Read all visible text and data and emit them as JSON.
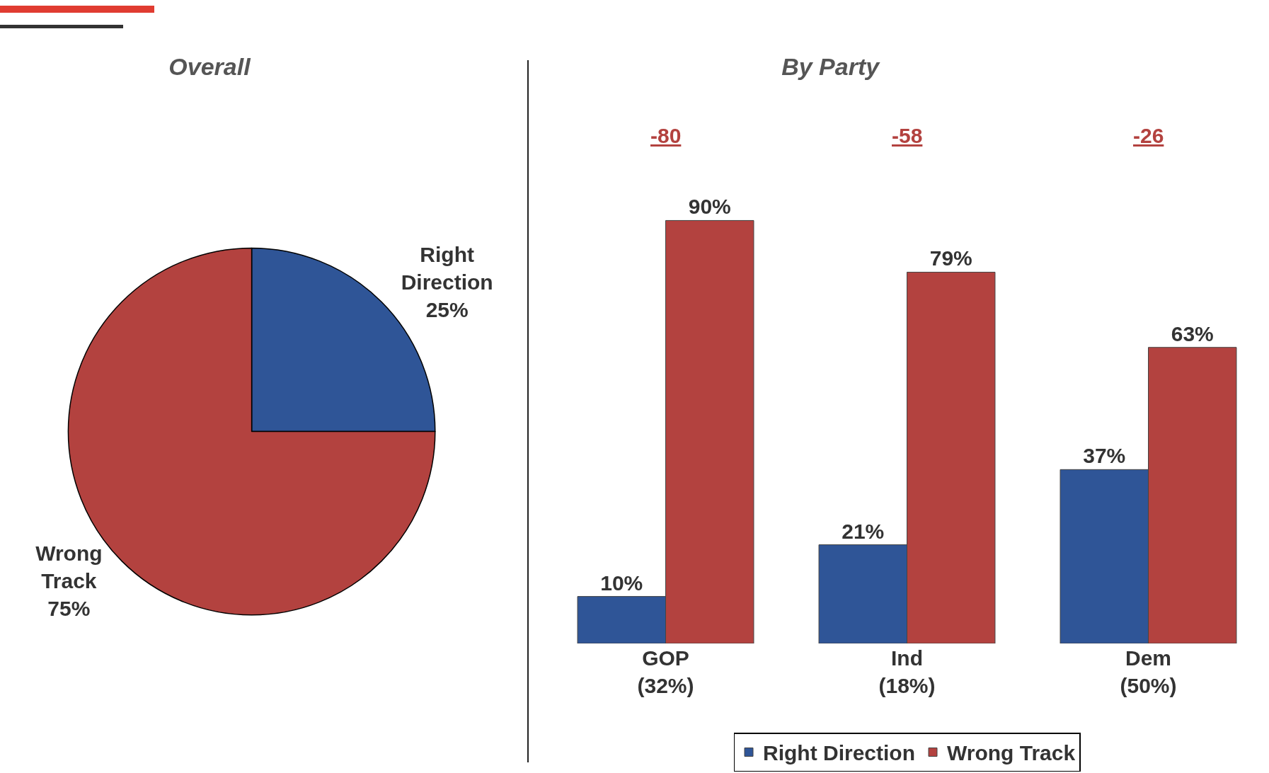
{
  "chart_data": [
    {
      "type": "pie",
      "title": "Overall",
      "categories": [
        "Right Direction",
        "Wrong Track"
      ],
      "values": [
        25,
        75
      ],
      "colors": [
        "#2f5597",
        "#b3423f"
      ],
      "value_labels": [
        "25%",
        "75%"
      ],
      "legend": false
    },
    {
      "type": "bar",
      "title": "By Party",
      "categories": [
        "GOP\n(32%)",
        "Ind\n(18%)",
        "Dem\n(50%)"
      ],
      "series": [
        {
          "name": "Right Direction",
          "color": "#2f5597",
          "values": [
            10,
            21,
            37
          ],
          "value_labels": [
            "10%",
            "21%",
            "37%"
          ]
        },
        {
          "name": "Wrong Track",
          "color": "#b3423f",
          "values": [
            90,
            79,
            63
          ],
          "value_labels": [
            "90%",
            "79%",
            "63%"
          ]
        }
      ],
      "annotations": [
        "-80",
        "-58",
        "-26"
      ],
      "legend": "bottom"
    }
  ]
}
